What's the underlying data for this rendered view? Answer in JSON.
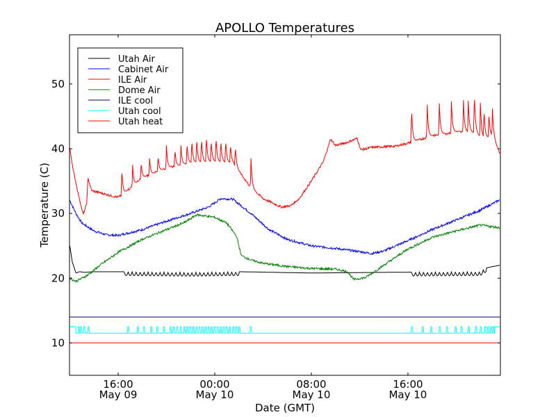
{
  "chart_data": {
    "type": "line",
    "title": "APOLLO Temperatures",
    "xlabel": "Date (GMT)",
    "ylabel": "Temperature (C)",
    "x_units": "hours relative to 00:00 May 10 (GMT)",
    "xlim": [
      -12.03,
      23.66
    ],
    "ylim": [
      5,
      57.6
    ],
    "grid": false,
    "legend_position": "top-left",
    "xticks": [
      {
        "value": -8,
        "label_time": "16:00",
        "label_date": "May 09"
      },
      {
        "value": 0,
        "label_time": "00:00",
        "label_date": "May 10"
      },
      {
        "value": 8,
        "label_time": "08:00",
        "label_date": "May 10"
      },
      {
        "value": 16,
        "label_time": "16:00",
        "label_date": "May 10"
      }
    ],
    "yticks": [
      10,
      20,
      30,
      40,
      50
    ],
    "series": [
      {
        "name": "Utah Air",
        "color": "#000000",
        "points": [
          [
            -12.0,
            25.0
          ],
          [
            -11.8,
            22.5
          ],
          [
            -11.5,
            20.8
          ],
          [
            -11.2,
            21.0
          ],
          [
            -10.8,
            20.9
          ],
          [
            -10.0,
            21.0
          ],
          [
            -7.5,
            21.0
          ],
          [
            -2,
            20.9
          ],
          [
            2,
            21.0
          ],
          [
            8,
            20.8
          ],
          [
            14,
            20.9
          ],
          [
            22,
            21.0
          ],
          [
            22.5,
            21.6
          ],
          [
            23.6,
            22.0
          ]
        ],
        "sawtooth": [
          {
            "from": -7.5,
            "to": 2.0,
            "amplitude": 0.6
          },
          {
            "from": 16.3,
            "to": 22.5,
            "amplitude": 0.6
          }
        ]
      },
      {
        "name": "Cabinet Air",
        "color": "#0000ff",
        "points": [
          [
            -12.0,
            32.0
          ],
          [
            -11.5,
            30.0
          ],
          [
            -11.0,
            28.5
          ],
          [
            -10.0,
            27.3
          ],
          [
            -9.0,
            26.7
          ],
          [
            -8.0,
            26.6
          ],
          [
            -6.0,
            27.5
          ],
          [
            -4.0,
            28.8
          ],
          [
            -2.0,
            30.0
          ],
          [
            -0.5,
            31.0
          ],
          [
            0.5,
            32.3
          ],
          [
            1.5,
            32.2
          ],
          [
            3.0,
            30.0
          ],
          [
            4.5,
            27.5
          ],
          [
            6,
            26.0
          ],
          [
            8,
            25.0
          ],
          [
            10,
            24.6
          ],
          [
            12,
            24.1
          ],
          [
            13,
            23.8
          ],
          [
            14,
            24.2
          ],
          [
            16,
            25.8
          ],
          [
            18,
            27.5
          ],
          [
            20,
            29.0
          ],
          [
            22,
            30.5
          ],
          [
            23.0,
            31.5
          ],
          [
            23.6,
            32.1
          ]
        ]
      },
      {
        "name": "ILE Air",
        "color": "#ff0000",
        "points": [
          [
            -12.0,
            40.0
          ],
          [
            -11.7,
            36.5
          ],
          [
            -11.3,
            33.0
          ],
          [
            -10.9,
            29.8
          ],
          [
            -10.6,
            31.5
          ],
          [
            -10.5,
            35.5
          ],
          [
            -10.2,
            33.5
          ],
          [
            -9.5,
            33.2
          ],
          [
            -8.5,
            32.7
          ],
          [
            -8.0,
            32.5
          ],
          [
            -7.6,
            33.0
          ],
          [
            -6,
            35.5
          ],
          [
            -4,
            37.0
          ],
          [
            -2,
            37.8
          ],
          [
            0,
            38.0
          ],
          [
            1.5,
            37.8
          ],
          [
            2.0,
            36.5
          ],
          [
            3.0,
            34.0
          ],
          [
            4.0,
            32.3
          ],
          [
            5.5,
            31.0
          ],
          [
            6.3,
            31.2
          ],
          [
            7,
            32.3
          ],
          [
            8,
            35.0
          ],
          [
            9.0,
            38.0
          ],
          [
            9.6,
            41.5
          ],
          [
            10.0,
            40.5
          ],
          [
            11.0,
            41.0
          ],
          [
            11.8,
            41.6
          ],
          [
            12.1,
            39.8
          ],
          [
            13,
            40.2
          ],
          [
            15,
            40.4
          ],
          [
            16.3,
            41.0
          ],
          [
            18,
            42.0
          ],
          [
            20,
            42.6
          ],
          [
            21.5,
            42.5
          ],
          [
            22.3,
            41.5
          ],
          [
            23.0,
            42.0
          ],
          [
            23.6,
            39.3
          ]
        ],
        "spikes": [
          [
            -10.6,
            31.5
          ],
          [
            -7.7,
            37.0
          ],
          [
            -6.8,
            37.5
          ],
          [
            -6.1,
            38.0
          ],
          [
            -5.4,
            38.5
          ],
          [
            -4.7,
            39.0
          ],
          [
            -4.0,
            40.5
          ],
          [
            -3.3,
            40.0
          ],
          [
            -2.8,
            40.5
          ],
          [
            -2.3,
            41.0
          ],
          [
            -1.9,
            41.5
          ],
          [
            -1.5,
            41.8
          ],
          [
            -1.1,
            41.8
          ],
          [
            -0.7,
            42.2
          ],
          [
            -0.3,
            41.5
          ],
          [
            0.1,
            42.0
          ],
          [
            0.5,
            41.5
          ],
          [
            0.9,
            41.5
          ],
          [
            1.3,
            40.8
          ],
          [
            1.7,
            40.5
          ],
          [
            3.0,
            38.5
          ],
          [
            16.3,
            46.5
          ],
          [
            17.6,
            46.8
          ],
          [
            18.6,
            47.0
          ],
          [
            19.6,
            47.3
          ],
          [
            20.6,
            47.5
          ],
          [
            21.0,
            47.4
          ],
          [
            21.5,
            48.8
          ],
          [
            22.0,
            47.1
          ],
          [
            22.3,
            46.3
          ],
          [
            22.7,
            45.7
          ],
          [
            23.0,
            46.2
          ]
        ]
      },
      {
        "name": "Dome Air",
        "color": "#008000",
        "points": [
          [
            -12.0,
            20.0
          ],
          [
            -11.5,
            19.5
          ],
          [
            -10.5,
            20.5
          ],
          [
            -9.5,
            22.0
          ],
          [
            -8.0,
            24.0
          ],
          [
            -6.0,
            26.0
          ],
          [
            -4.0,
            27.5
          ],
          [
            -2.5,
            28.6
          ],
          [
            -1.5,
            29.8
          ],
          [
            0,
            29.4
          ],
          [
            1,
            28.5
          ],
          [
            1.8,
            26.5
          ],
          [
            2.2,
            23.5
          ],
          [
            3.0,
            22.8
          ],
          [
            4.0,
            22.3
          ],
          [
            6,
            21.8
          ],
          [
            8,
            21.5
          ],
          [
            10,
            21.4
          ],
          [
            11.0,
            21.0
          ],
          [
            11.5,
            19.8
          ],
          [
            12.5,
            20.1
          ],
          [
            14,
            22.0
          ],
          [
            16,
            24.5
          ],
          [
            18,
            26.3
          ],
          [
            20,
            27.3
          ],
          [
            22,
            28.2
          ],
          [
            23.6,
            27.8
          ]
        ]
      },
      {
        "name": "ILE cool",
        "color": "#000080",
        "points": [
          [
            -12.03,
            14.0
          ],
          [
            23.66,
            14.0
          ]
        ]
      },
      {
        "name": "Utah cool",
        "color": "#00ffff",
        "low": 11.5,
        "high": 12.5,
        "pulses": [
          -11.3,
          -11.1,
          -10.85,
          -10.5,
          -7.2,
          -6.4,
          -5.9,
          -5.3,
          -4.8,
          -4.25,
          -3.7,
          -3.45,
          -3.15,
          -2.85,
          -2.55,
          -2.3,
          -2.05,
          -1.8,
          -1.55,
          -1.3,
          -1.05,
          -0.8,
          -0.55,
          -0.3,
          -0.05,
          0.2,
          0.45,
          0.7,
          0.95,
          1.2,
          1.5,
          1.75,
          2.0,
          2.95,
          16.3,
          17.2,
          17.9,
          18.6,
          19.2,
          19.9,
          20.4,
          21.0,
          21.6,
          22.0,
          22.35,
          22.6,
          22.85,
          23.05
        ],
        "high_until": -11.5,
        "high_from": 23.2
      },
      {
        "name": "Utah heat",
        "color": "#ff0000",
        "points": [
          [
            -12.03,
            10.0
          ],
          [
            23.66,
            10.0
          ]
        ]
      }
    ]
  }
}
